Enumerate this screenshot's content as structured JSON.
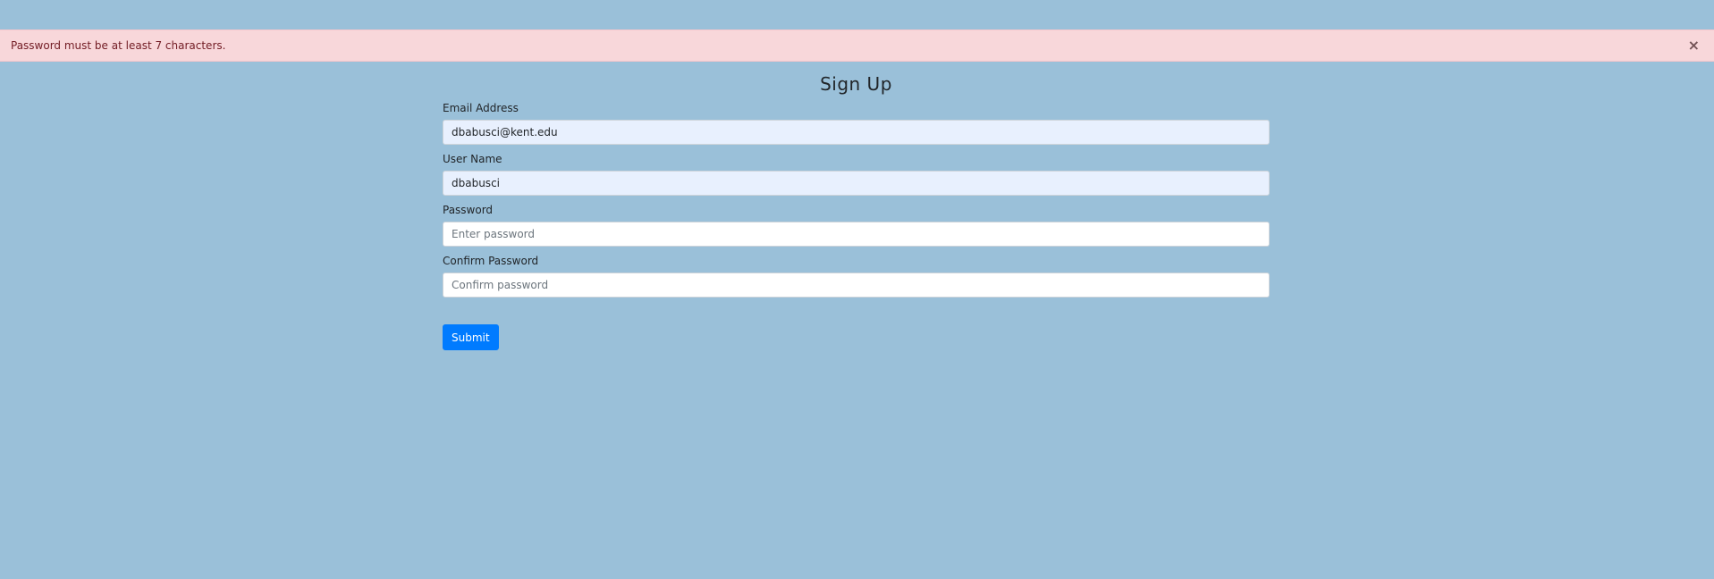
{
  "alert": {
    "message": "Password must be at least 7 characters.",
    "close_symbol": "×",
    "background_color": "#f8d7da",
    "text_color": "#721c24"
  },
  "form": {
    "title": "Sign Up",
    "fields": {
      "email": {
        "label": "Email Address",
        "value": "dbabusci@kent.edu"
      },
      "username": {
        "label": "User Name",
        "value": "dbabusci"
      },
      "password": {
        "label": "Password",
        "placeholder": "Enter password"
      },
      "confirm_password": {
        "label": "Confirm Password",
        "placeholder": "Confirm password"
      }
    },
    "submit_label": "Submit"
  },
  "colors": {
    "page_background": "#9ac0d9",
    "primary_button": "#007bff",
    "autofill_background": "#e8f0fe"
  }
}
